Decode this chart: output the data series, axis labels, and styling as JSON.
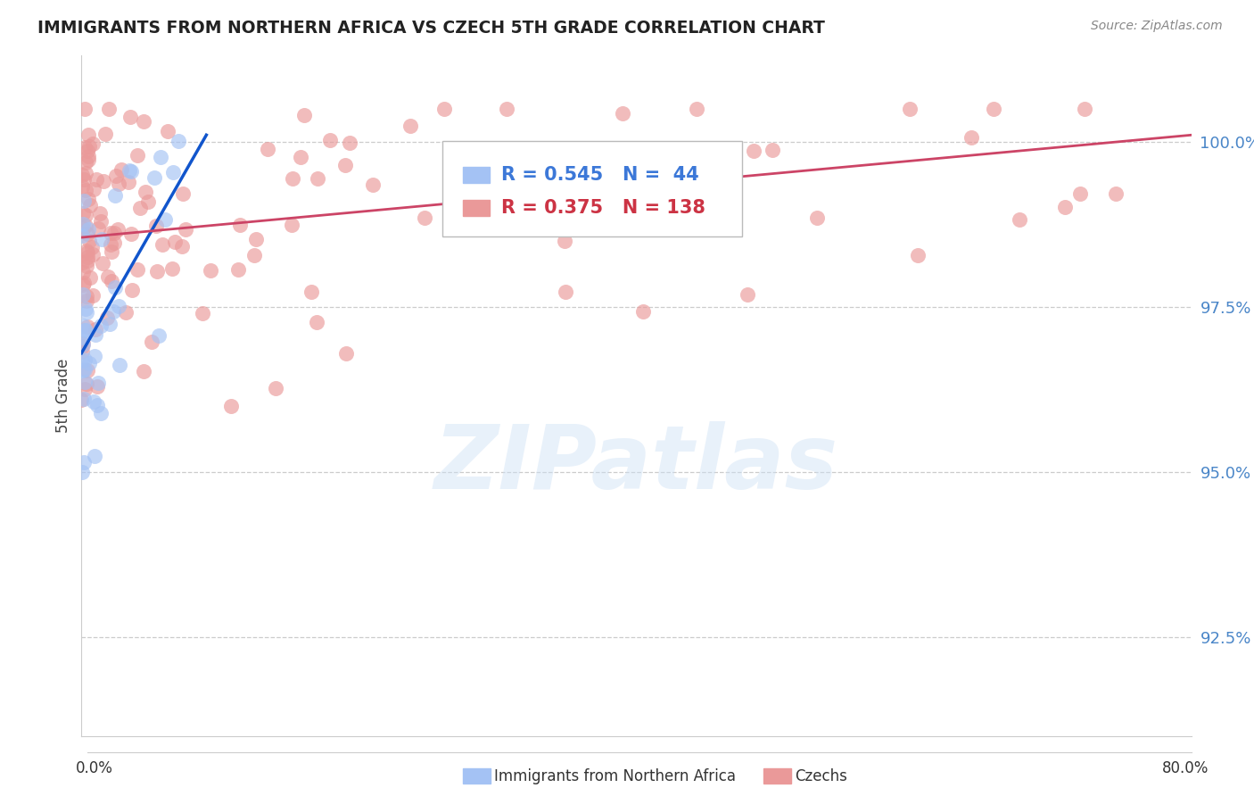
{
  "title": "IMMIGRANTS FROM NORTHERN AFRICA VS CZECH 5TH GRADE CORRELATION CHART",
  "source": "Source: ZipAtlas.com",
  "ylabel": "5th Grade",
  "yticks": [
    92.5,
    95.0,
    97.5,
    100.0
  ],
  "ytick_labels": [
    "92.5%",
    "95.0%",
    "97.5%",
    "100.0%"
  ],
  "xlim": [
    0.0,
    80.0
  ],
  "ylim": [
    91.0,
    101.3
  ],
  "blue_R": 0.545,
  "blue_N": 44,
  "pink_R": 0.375,
  "pink_N": 138,
  "blue_color": "#a4c2f4",
  "pink_color": "#ea9999",
  "blue_line_color": "#1155cc",
  "pink_line_color": "#cc4466",
  "legend_label_blue": "Immigrants from Northern Africa",
  "legend_label_pink": "Czechs",
  "watermark_text": "ZIPatlas",
  "background_color": "#ffffff",
  "blue_trend_x0": 0.0,
  "blue_trend_y0": 96.8,
  "blue_trend_x1": 9.0,
  "blue_trend_y1": 100.1,
  "pink_trend_x0": 0.0,
  "pink_trend_y0": 98.55,
  "pink_trend_x1": 80.0,
  "pink_trend_y1": 100.1
}
